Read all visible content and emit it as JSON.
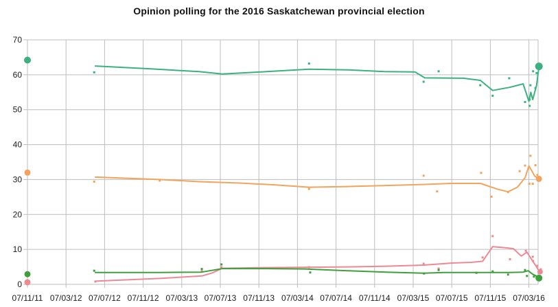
{
  "chart_data": {
    "type": "line",
    "title": "Opinion polling for the 2016 Saskatchewan provincial election",
    "x_tick_labels": [
      "07/11/11",
      "07/03/12",
      "07/07/12",
      "07/11/12",
      "07/03/13",
      "07/07/13",
      "07/11/13",
      "07/03/14",
      "07/07/14",
      "07/11/14",
      "07/03/15",
      "07/07/15",
      "07/11/15",
      "07/03/16"
    ],
    "x_note": "x values below are in tick units; one tick = 4 months starting 07/11/11",
    "y_tick_labels": [
      "0",
      "10",
      "20",
      "30",
      "40",
      "50",
      "60",
      "70"
    ],
    "y_ticks": [
      0,
      10,
      20,
      30,
      40,
      50,
      60,
      70
    ],
    "ylim": [
      0,
      70
    ],
    "grid": true,
    "legend": "none",
    "gridline_color": "#bdbdbd",
    "background_color": "#ffffff",
    "series": [
      {
        "name": "teal",
        "color": "#3bb081",
        "trend": [
          [
            1.76,
            62.5
          ],
          [
            3.2,
            61.7
          ],
          [
            4.45,
            60.9
          ],
          [
            5.05,
            60.2
          ],
          [
            6.2,
            60.9
          ],
          [
            7.3,
            61.6
          ],
          [
            8.3,
            61.4
          ],
          [
            9.25,
            60.9
          ],
          [
            10.05,
            60.8
          ],
          [
            10.3,
            59.1
          ],
          [
            11.3,
            59.0
          ],
          [
            11.74,
            58.4
          ],
          [
            12.06,
            55.5
          ],
          [
            12.5,
            56.4
          ],
          [
            12.85,
            57.4
          ],
          [
            13.0,
            52.4
          ],
          [
            13.05,
            55.0
          ],
          [
            13.1,
            52.9
          ],
          [
            13.2,
            57.0
          ],
          [
            13.26,
            62.3
          ]
        ],
        "polls": [
          [
            1.73,
            60.7
          ],
          [
            7.3,
            63.2
          ],
          [
            10.27,
            58.0
          ],
          [
            10.66,
            61.0
          ],
          [
            11.74,
            57.0
          ],
          [
            12.06,
            54.0
          ],
          [
            12.49,
            59.0
          ],
          [
            12.9,
            52.2
          ],
          [
            13.02,
            52.9
          ],
          [
            13.02,
            51.1
          ],
          [
            13.04,
            57.0
          ],
          [
            13.11,
            61.0
          ],
          [
            13.17,
            56.2
          ],
          [
            13.2,
            60.5
          ]
        ],
        "election_2011": [
          0,
          64.2,
          5
        ],
        "election_2016": [
          13.26,
          62.4,
          5.5
        ]
      },
      {
        "name": "orange",
        "color": "#f2a35e",
        "trend": [
          [
            1.76,
            30.7
          ],
          [
            3.43,
            30.0
          ],
          [
            4.45,
            29.4
          ],
          [
            5.5,
            29.0
          ],
          [
            6.4,
            28.5
          ],
          [
            7.3,
            27.8
          ],
          [
            8.3,
            28.0
          ],
          [
            9.3,
            28.3
          ],
          [
            10.3,
            28.6
          ],
          [
            11.0,
            28.9
          ],
          [
            11.74,
            28.9
          ],
          [
            12.2,
            27.2
          ],
          [
            12.46,
            26.5
          ],
          [
            12.7,
            27.8
          ],
          [
            12.9,
            30.5
          ],
          [
            13.0,
            33.9
          ],
          [
            13.07,
            32.6
          ],
          [
            13.15,
            31.0
          ],
          [
            13.26,
            30.2
          ]
        ],
        "polls": [
          [
            1.73,
            29.4
          ],
          [
            3.43,
            29.7
          ],
          [
            7.3,
            27.3
          ],
          [
            10.27,
            31.1
          ],
          [
            10.62,
            26.6
          ],
          [
            11.76,
            31.9
          ],
          [
            12.03,
            25.1
          ],
          [
            12.46,
            26.4
          ],
          [
            12.76,
            32.4
          ],
          [
            12.9,
            34.0
          ],
          [
            13.01,
            28.8
          ],
          [
            13.04,
            36.8
          ],
          [
            13.1,
            28.8
          ],
          [
            13.17,
            34.1
          ],
          [
            13.22,
            31.3
          ]
        ],
        "election_2011": [
          0,
          32.0,
          4.5
        ],
        "election_2016": [
          13.26,
          30.2,
          4.5
        ]
      },
      {
        "name": "pink",
        "color": "#ee8993",
        "trend": [
          [
            1.76,
            0.9
          ],
          [
            3.43,
            1.7
          ],
          [
            4.52,
            2.4
          ],
          [
            4.8,
            3.3
          ],
          [
            5.05,
            4.6
          ],
          [
            6.3,
            4.8
          ],
          [
            7.3,
            4.9
          ],
          [
            8.3,
            5.0
          ],
          [
            9.3,
            5.2
          ],
          [
            10.27,
            5.5
          ],
          [
            11.0,
            6.1
          ],
          [
            11.5,
            6.3
          ],
          [
            11.8,
            6.6
          ],
          [
            12.06,
            10.8
          ],
          [
            12.46,
            10.4
          ],
          [
            12.6,
            10.2
          ],
          [
            12.8,
            8.1
          ],
          [
            12.95,
            9.2
          ],
          [
            13.1,
            6.6
          ],
          [
            13.2,
            5.0
          ],
          [
            13.26,
            3.8
          ]
        ],
        "polls": [
          [
            1.76,
            0.8
          ],
          [
            4.52,
            3.9
          ],
          [
            5.03,
            4.9
          ],
          [
            7.3,
            4.9
          ],
          [
            10.27,
            5.9
          ],
          [
            10.66,
            4.5
          ],
          [
            11.8,
            7.7
          ],
          [
            12.06,
            13.8
          ],
          [
            12.51,
            7.2
          ],
          [
            12.92,
            9.6
          ],
          [
            13.1,
            7.9
          ],
          [
            13.11,
            6.7
          ],
          [
            13.22,
            5.3
          ],
          [
            13.31,
            4.3
          ]
        ],
        "election_2011": [
          0,
          0.6,
          4.5
        ],
        "election_2016": [
          13.29,
          3.6,
          4
        ]
      },
      {
        "name": "green",
        "color": "#3f9f3c",
        "trend": [
          [
            1.76,
            3.4
          ],
          [
            3.43,
            3.4
          ],
          [
            4.52,
            3.5
          ],
          [
            5.05,
            4.5
          ],
          [
            6.2,
            4.5
          ],
          [
            7.2,
            4.4
          ],
          [
            8.3,
            3.9
          ],
          [
            9.3,
            3.5
          ],
          [
            10.27,
            3.2
          ],
          [
            10.8,
            3.4
          ],
          [
            11.74,
            3.4
          ],
          [
            12.46,
            3.4
          ],
          [
            12.85,
            3.5
          ],
          [
            12.98,
            3.9
          ],
          [
            13.1,
            2.9
          ],
          [
            13.26,
            2.0
          ]
        ],
        "polls": [
          [
            1.73,
            3.9
          ],
          [
            4.52,
            4.4
          ],
          [
            5.03,
            5.7
          ],
          [
            7.33,
            3.4
          ],
          [
            10.28,
            3.1
          ],
          [
            10.66,
            4.1
          ],
          [
            11.64,
            3.3
          ],
          [
            12.06,
            3.7
          ],
          [
            12.46,
            2.8
          ],
          [
            12.9,
            4.1
          ],
          [
            12.95,
            2.4
          ],
          [
            13.13,
            2.2
          ]
        ],
        "election_2011": [
          0,
          2.9,
          4.5
        ],
        "election_2016": [
          13.26,
          1.8,
          5
        ]
      }
    ]
  }
}
